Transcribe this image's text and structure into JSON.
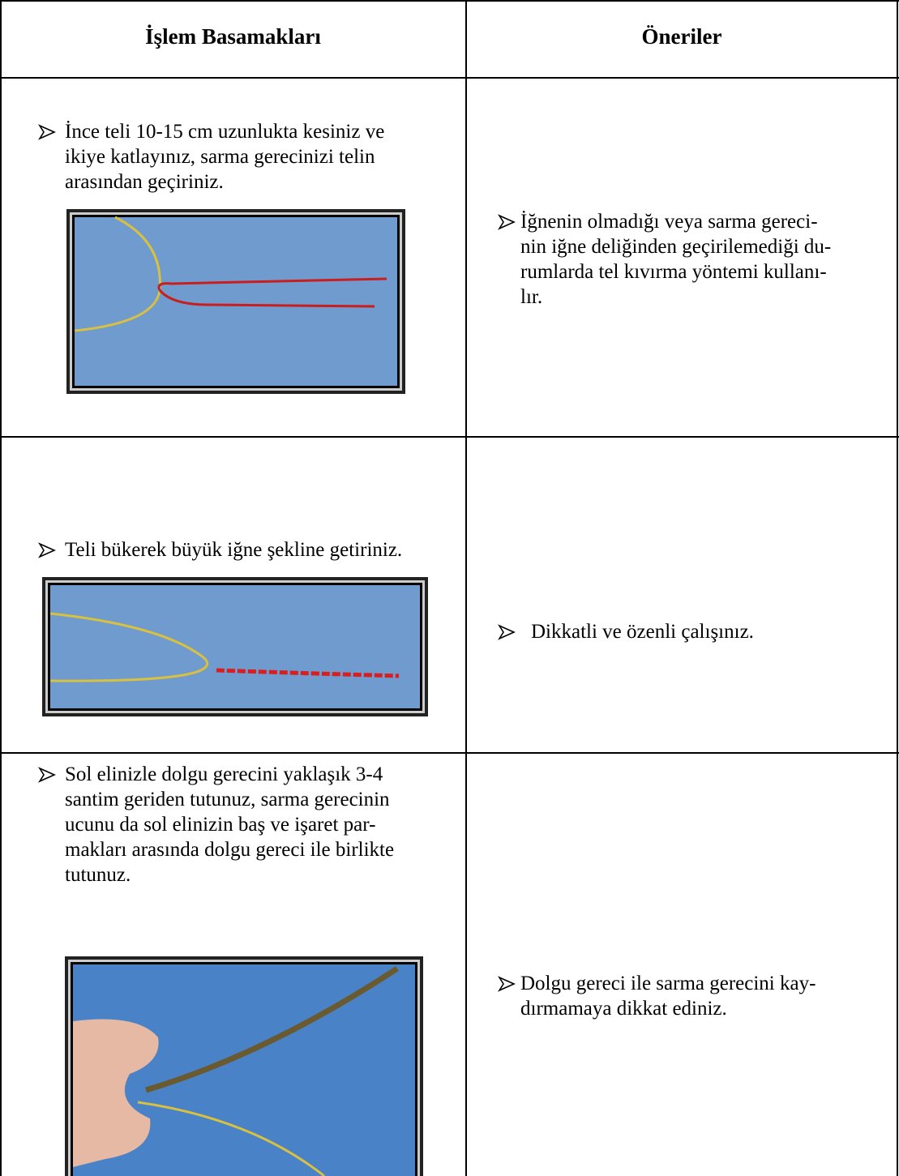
{
  "table": {
    "header": [
      "İşlem Basamakları",
      "Öneriler"
    ],
    "rows": [
      {
        "step": [
          "İnce teli 10-15 cm uzunlukta kesiniz ve",
          "ikiye katlayınız, sarma gerecinizi telin",
          "arasından geçiriniz."
        ],
        "tip": [
          "İğnenin olmadığı veya sarma gereci-",
          "nin iğne deliğinden geçirilemediği du-",
          "rumlarda tel kıvırma yöntemi kullanı-",
          "lır."
        ]
      },
      {
        "step": [
          "Teli bükerek büyük iğne şekline getiriniz."
        ],
        "tip": [
          "Dikkatli ve özenli çalışınız."
        ]
      },
      {
        "step": [
          "Sol elinizle dolgu gerecini yaklaşık 3-4",
          "santim geriden tutunuz, sarma gerecinin",
          "ucunu da sol elinizin baş ve işaret par-",
          "makları arasında dolgu gereci ile birlikte",
          "tutunuz."
        ],
        "tip": [
          "Dolgu gereci ile sarma gerecini kay-",
          "dırmamaya dikkat ediniz."
        ]
      }
    ]
  }
}
